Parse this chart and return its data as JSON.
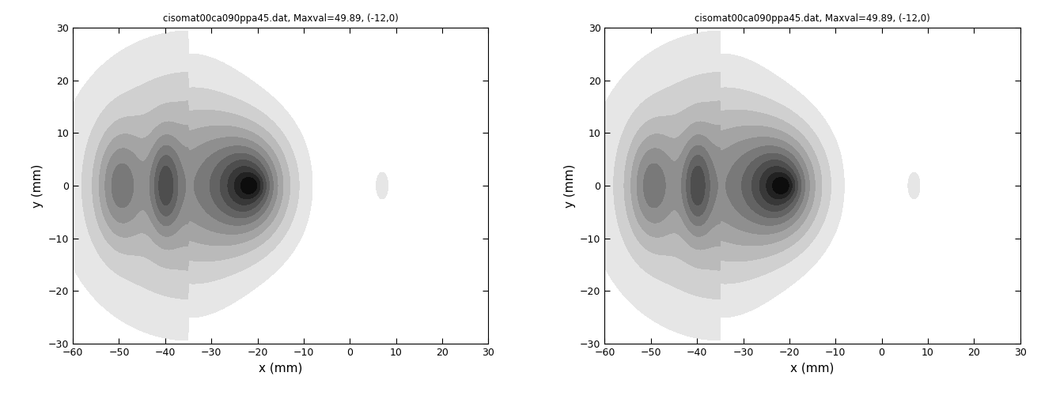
{
  "title": "cisomat00ca090ppa45.dat, Maxval=49.89, (-12,0)",
  "xlabel": "x (mm)",
  "ylabel": "y (mm)",
  "xlim": [
    -60,
    30
  ],
  "ylim": [
    -30,
    30
  ],
  "xticks": [
    -60,
    -50,
    -40,
    -30,
    -20,
    -10,
    0,
    10,
    20,
    30
  ],
  "yticks": [
    -30,
    -20,
    -10,
    0,
    10,
    20,
    30
  ],
  "title_fontsize": 8.5,
  "label_fontsize": 11,
  "tick_fontsize": 9,
  "background_color": "#ffffff",
  "n_levels": 11
}
